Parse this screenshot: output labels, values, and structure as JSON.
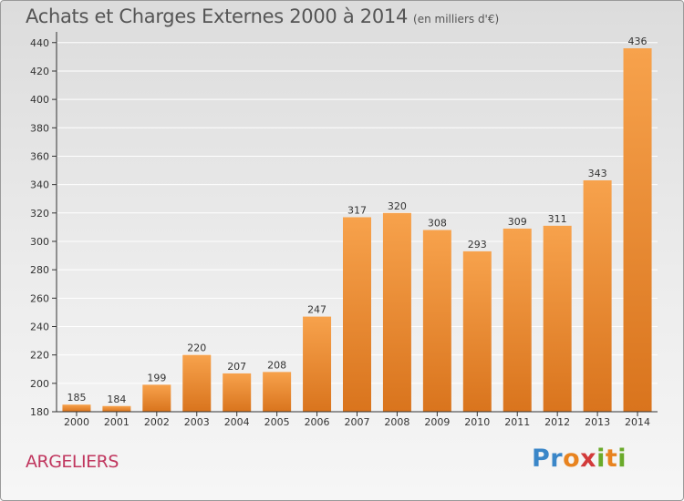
{
  "header": {
    "title": "Achats et Charges Externes 2000 à 2014",
    "unit": "(en milliers d'€)"
  },
  "footer": {
    "place": "ARGELIERS",
    "logo": "Proxiti"
  },
  "colors": {
    "bar_light": "#f7a24c",
    "bar_dark": "#d9741d",
    "axis": "#333333",
    "grid": "#ffffff",
    "place_text": "#c0365e"
  },
  "chart_data": {
    "type": "bar",
    "title": "Achats et Charges Externes 2000 à 2014",
    "subtitle": "(en milliers d'€)",
    "categories": [
      "2000",
      "2001",
      "2002",
      "2003",
      "2004",
      "2005",
      "2006",
      "2007",
      "2008",
      "2009",
      "2010",
      "2011",
      "2012",
      "2013",
      "2014"
    ],
    "values": [
      185,
      184,
      199,
      220,
      207,
      208,
      247,
      317,
      320,
      308,
      293,
      309,
      311,
      343,
      436
    ],
    "ylim": [
      180,
      440
    ],
    "yticks": [
      180,
      200,
      220,
      240,
      260,
      280,
      300,
      320,
      340,
      360,
      380,
      400,
      420,
      440
    ],
    "grid": true,
    "legend": "none",
    "data_labels": true
  }
}
